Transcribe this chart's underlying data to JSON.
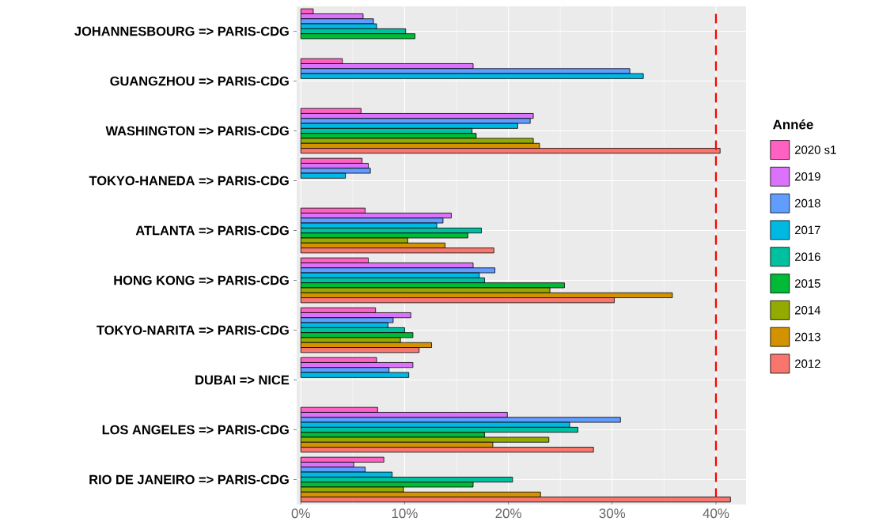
{
  "chart_data": {
    "type": "bar",
    "orientation": "horizontal",
    "legend_title": "Année",
    "legend": "right",
    "grid": true,
    "categories": [
      "JOHANNESBOURG => PARIS-CDG",
      "GUANGZHOU => PARIS-CDG",
      "WASHINGTON => PARIS-CDG",
      "TOKYO-HANEDA => PARIS-CDG",
      "ATLANTA => PARIS-CDG",
      "HONG KONG => PARIS-CDG",
      "TOKYO-NARITA => PARIS-CDG",
      "DUBAI => NICE",
      "LOS ANGELES => PARIS-CDG",
      "RIO DE JANEIRO => PARIS-CDG"
    ],
    "series": [
      {
        "name": "2020 s1",
        "color": "#ff61c3",
        "values": [
          1.2,
          4.0,
          5.8,
          5.9,
          6.2,
          6.5,
          7.2,
          7.3,
          7.4,
          8.0
        ]
      },
      {
        "name": "2019",
        "color": "#db72fb",
        "values": [
          6.0,
          16.6,
          22.4,
          6.5,
          14.5,
          16.6,
          10.6,
          10.8,
          19.9,
          5.1
        ]
      },
      {
        "name": "2018",
        "color": "#619cff",
        "values": [
          7.0,
          31.7,
          22.1,
          6.7,
          13.7,
          18.7,
          8.9,
          8.5,
          30.8,
          6.2
        ]
      },
      {
        "name": "2017",
        "color": "#00b9e3",
        "values": [
          7.3,
          33.0,
          20.9,
          4.3,
          13.1,
          17.2,
          8.4,
          10.4,
          25.9,
          8.8
        ]
      },
      {
        "name": "2016",
        "color": "#00c19f",
        "values": [
          10.1,
          null,
          16.5,
          null,
          17.4,
          17.7,
          10.0,
          null,
          26.7,
          20.4
        ]
      },
      {
        "name": "2015",
        "color": "#00ba38",
        "values": [
          11.0,
          null,
          16.9,
          null,
          16.1,
          25.4,
          10.8,
          null,
          17.7,
          16.6
        ]
      },
      {
        "name": "2014",
        "color": "#93aa00",
        "values": [
          null,
          null,
          22.4,
          null,
          10.3,
          24.0,
          9.6,
          null,
          23.9,
          9.9
        ]
      },
      {
        "name": "2013",
        "color": "#d39200",
        "values": [
          null,
          null,
          23.0,
          null,
          13.9,
          35.8,
          12.6,
          null,
          18.5,
          23.1
        ]
      },
      {
        "name": "2012",
        "color": "#f8766d",
        "values": [
          null,
          null,
          40.4,
          null,
          18.6,
          30.2,
          11.4,
          null,
          28.2,
          41.4
        ]
      }
    ],
    "xlim": [
      -0.4,
      42.9
    ],
    "xticks": [
      {
        "value": 0,
        "label": "0%"
      },
      {
        "value": 10,
        "label": "10%"
      },
      {
        "value": 20,
        "label": "20%"
      },
      {
        "value": 30,
        "label": "30%"
      },
      {
        "value": 40,
        "label": "40%"
      }
    ],
    "ref_lines": [
      {
        "axis": "x",
        "value": 40,
        "color": "#ff0000",
        "line_style": "dashed"
      }
    ]
  }
}
